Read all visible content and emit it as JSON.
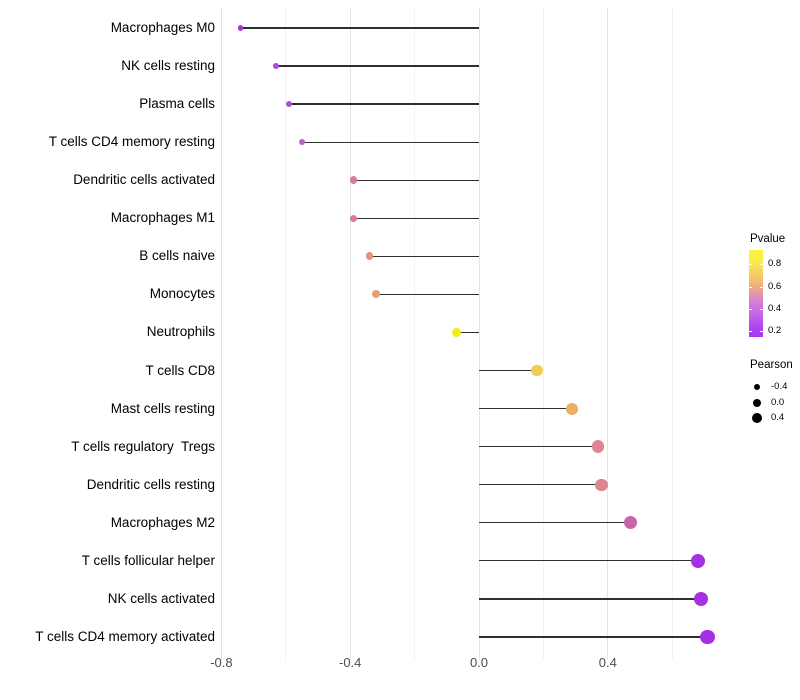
{
  "chart_data": {
    "type": "lollipop",
    "title": "",
    "xlabel": "",
    "ylabel": "",
    "x_tick_labels": [
      "-0.8",
      "-0.4",
      "0.0",
      "0.4"
    ],
    "x_ticks": [
      -0.8,
      -0.4,
      0.0,
      0.4
    ],
    "x_minor_ticks": [
      -0.6,
      -0.2,
      0.2,
      0.6
    ],
    "xlim": [
      -0.88,
      0.78
    ],
    "grid": "vertical-only",
    "legend_position": "right",
    "points": [
      {
        "label": "Macrophages M0",
        "pearson": -0.74,
        "color": "#a238d6"
      },
      {
        "label": "NK cells resting",
        "pearson": -0.63,
        "color": "#ae49d4"
      },
      {
        "label": "Plasma cells",
        "pearson": -0.59,
        "color": "#b14fd3"
      },
      {
        "label": "T cells CD4 memory resting",
        "pearson": -0.55,
        "color": "#bd5ece"
      },
      {
        "label": "Dendritic cells activated",
        "pearson": -0.39,
        "color": "#d87e95"
      },
      {
        "label": "Macrophages M1",
        "pearson": -0.39,
        "color": "#d67c96"
      },
      {
        "label": "B cells naive",
        "pearson": -0.34,
        "color": "#e4947b"
      },
      {
        "label": "Monocytes",
        "pearson": -0.32,
        "color": "#e79d73"
      },
      {
        "label": "Neutrophils",
        "pearson": -0.07,
        "color": "#f4ec13"
      },
      {
        "label": "T cells CD8",
        "pearson": 0.18,
        "color": "#f2cd55"
      },
      {
        "label": "Mast cells resting",
        "pearson": 0.29,
        "color": "#efae67"
      },
      {
        "label": "T cells regulatory  Tregs",
        "pearson": 0.37,
        "color": "#dd8590"
      },
      {
        "label": "Dendritic cells resting",
        "pearson": 0.38,
        "color": "#dd8691"
      },
      {
        "label": "Macrophages M2",
        "pearson": 0.47,
        "color": "#c765ab"
      },
      {
        "label": "T cells follicular helper",
        "pearson": 0.68,
        "color": "#a531e0"
      },
      {
        "label": "NK cells activated",
        "pearson": 0.69,
        "color": "#a531e0"
      },
      {
        "label": "T cells CD4 memory activated",
        "pearson": 0.71,
        "color": "#a72fe2"
      }
    ],
    "legend_pvalue": {
      "title": "Pvalue",
      "tick_labels": [
        "0.8",
        "0.6",
        "0.4",
        "0.2"
      ],
      "gradient_top_color": "#fbf43c",
      "gradient_bottom_color": "#a838ef"
    },
    "legend_pearson": {
      "title": "Pearson",
      "size_labels": [
        "-0.4",
        "0.0",
        "0.4"
      ]
    }
  }
}
